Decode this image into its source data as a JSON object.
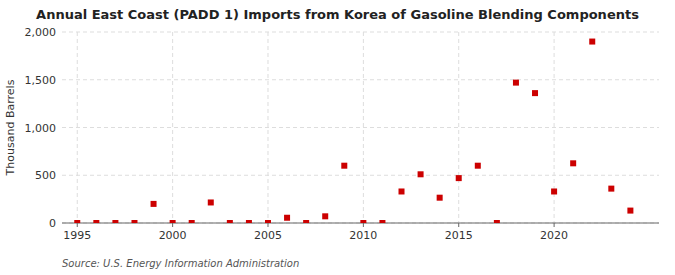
{
  "chart_data": {
    "type": "scatter",
    "title": "Annual East Coast (PADD 1) Imports from Korea of Gasoline Blending Components",
    "y_label": "Thousand Barrels",
    "annotations": [
      "Source: U.S. Energy Information Administration"
    ],
    "x": [
      1995,
      1996,
      1997,
      1998,
      1999,
      2000,
      2001,
      2002,
      2003,
      2004,
      2005,
      2006,
      2007,
      2008,
      2009,
      2010,
      2011,
      2012,
      2013,
      2014,
      2015,
      2016,
      2017,
      2018,
      2019,
      2020,
      2021,
      2022,
      2023,
      2024
    ],
    "values": [
      0,
      0,
      0,
      0,
      200,
      0,
      0,
      215,
      0,
      0,
      0,
      55,
      0,
      70,
      600,
      0,
      0,
      330,
      510,
      265,
      470,
      600,
      0,
      1470,
      1360,
      330,
      625,
      1900,
      360,
      130
    ],
    "color": "#cc0000",
    "marker": "square",
    "grid": true,
    "xlim": [
      1994.2,
      2025.5
    ],
    "xticks": [
      1995,
      2000,
      2005,
      2010,
      2015,
      2020
    ],
    "ylim": [
      0,
      2000
    ],
    "yticks": [
      0,
      500,
      {
        "value": 1000,
        "label": "1,000"
      },
      {
        "value": 1500,
        "label": "1,500"
      },
      {
        "value": 2000,
        "label": "2,000"
      }
    ]
  }
}
